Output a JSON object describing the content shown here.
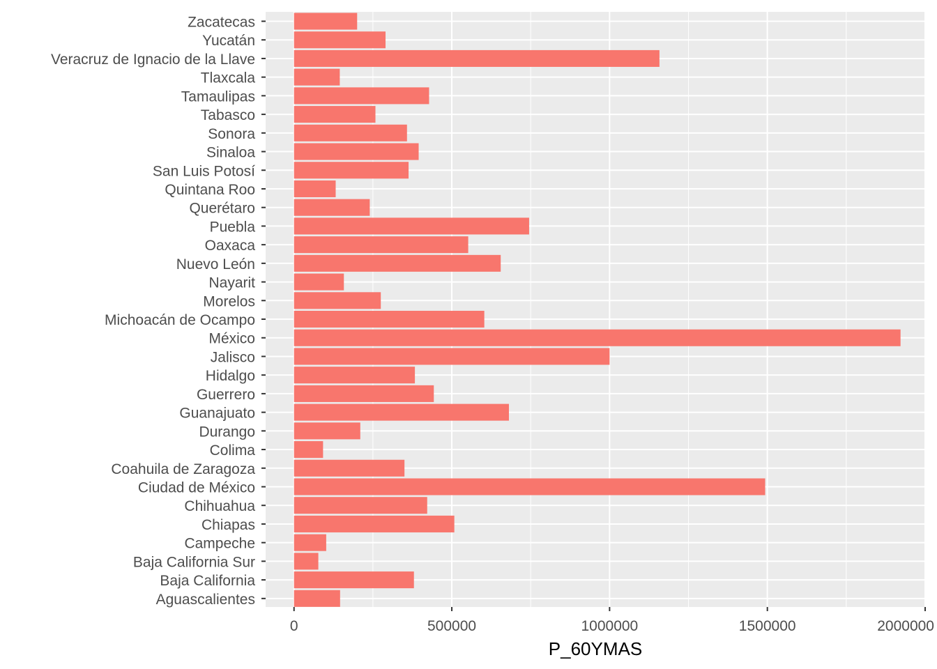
{
  "chart_data": {
    "type": "bar",
    "orientation": "horizontal",
    "xlabel": "P_60YMAS",
    "ylabel": "",
    "xlim": [
      -90000,
      2000000
    ],
    "x_ticks": [
      0,
      500000,
      1000000,
      1500000,
      2000000
    ],
    "x_tick_labels": [
      "0",
      "500000",
      "1000000",
      "1500000",
      "2000000"
    ],
    "grid": true,
    "bar_color": "#f8766d",
    "panel_background": "#ebebeb",
    "grid_color": "#ffffff",
    "categories": [
      "Zacatecas",
      "Yucatán",
      "Veracruz de Ignacio de la Llave",
      "Tlaxcala",
      "Tamaulipas",
      "Tabasco",
      "Sonora",
      "Sinaloa",
      "San Luis Potosí",
      "Quintana Roo",
      "Querétaro",
      "Puebla",
      "Oaxaca",
      "Nuevo León",
      "Nayarit",
      "Morelos",
      "Michoacán de Ocampo",
      "México",
      "Jalisco",
      "Hidalgo",
      "Guerrero",
      "Guanajuato",
      "Durango",
      "Colima",
      "Coahuila de Zaragoza",
      "Ciudad de México",
      "Chihuahua",
      "Chiapas",
      "Campeche",
      "Baja California Sur",
      "Baja California",
      "Aguascalientes"
    ],
    "values": [
      200000,
      290000,
      1158000,
      145000,
      428000,
      258000,
      358000,
      395000,
      363000,
      132000,
      240000,
      745000,
      552000,
      655000,
      158000,
      275000,
      603000,
      1922000,
      1000000,
      383000,
      443000,
      681000,
      210000,
      92000,
      350000,
      1493000,
      422000,
      508000,
      102000,
      77000,
      380000,
      146000
    ]
  }
}
